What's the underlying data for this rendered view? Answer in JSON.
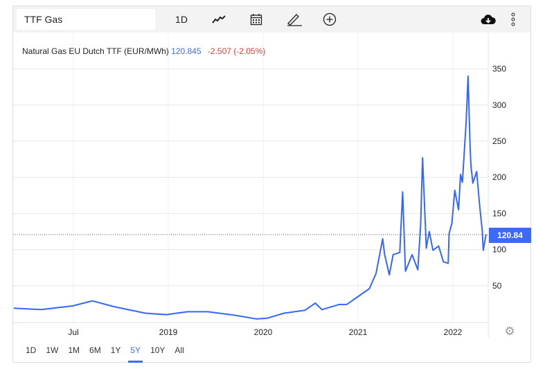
{
  "toolbar": {
    "symbol": "TTF Gas",
    "interval": "1D",
    "icons": [
      "chart-type-icon",
      "calendar-icon",
      "draw-pencil-icon",
      "add-circle-icon",
      "cloud-download-icon",
      "more-vertical-icon"
    ]
  },
  "legend": {
    "name": "Natural Gas EU Dutch TTF (EUR/MWh)",
    "price": "120.845",
    "change": "-2.507 (-2.05%)"
  },
  "price_label": "120.84",
  "ranges": [
    "1D",
    "1W",
    "1M",
    "6M",
    "1Y",
    "5Y",
    "10Y",
    "All"
  ],
  "active_range": "5Y",
  "colors": {
    "line": "#3366ff",
    "accent": "#3d6af5",
    "negative": "#e53935"
  },
  "chart_data": {
    "type": "line",
    "title": "",
    "xlabel": "",
    "ylabel": "",
    "ylim": [
      0,
      380
    ],
    "yticks": [
      50,
      100,
      150,
      200,
      250,
      300,
      350
    ],
    "xticks": [
      {
        "label": "Jul",
        "x": 2018.0
      },
      {
        "label": "2019",
        "x": 2019.0
      },
      {
        "label": "2020",
        "x": 2020.0
      },
      {
        "label": "2021",
        "x": 2021.0
      },
      {
        "label": "2022",
        "x": 2022.0
      }
    ],
    "grid": true,
    "last_value": 120.845,
    "series": [
      {
        "x": [
          2017.37,
          2017.66,
          2017.99,
          2018.2,
          2018.43,
          2018.76,
          2018.98,
          2019.2,
          2019.42,
          2019.71,
          2019.93,
          2020.04,
          2020.22,
          2020.44,
          2020.55,
          2020.62,
          2020.8,
          2020.88,
          2021.0,
          2021.12,
          2021.19,
          2021.26,
          2021.28,
          2021.33,
          2021.37,
          2021.44,
          2021.47,
          2021.5,
          2021.57,
          2021.63,
          2021.66,
          2021.68,
          2021.72,
          2021.75,
          2021.79,
          2021.85,
          2021.9,
          2021.95,
          2021.96,
          2021.99,
          2022.02,
          2022.06,
          2022.08,
          2022.1,
          2022.14,
          2022.16,
          2022.18,
          2022.19,
          2022.21,
          2022.25,
          2022.28,
          2022.31,
          2022.32,
          2022.35
        ],
        "y": [
          19,
          17,
          22,
          29,
          21,
          12,
          10,
          14,
          14,
          9,
          4,
          5,
          12,
          16,
          26,
          17,
          24,
          24,
          35,
          46,
          67,
          115,
          93,
          65,
          93,
          96,
          180,
          70,
          93,
          72,
          134,
          227,
          102,
          125,
          99,
          105,
          83,
          81,
          122,
          137,
          182,
          155,
          204,
          193,
          278,
          340,
          246,
          217,
          192,
          208,
          163,
          125,
          99,
          121
        ]
      }
    ]
  }
}
